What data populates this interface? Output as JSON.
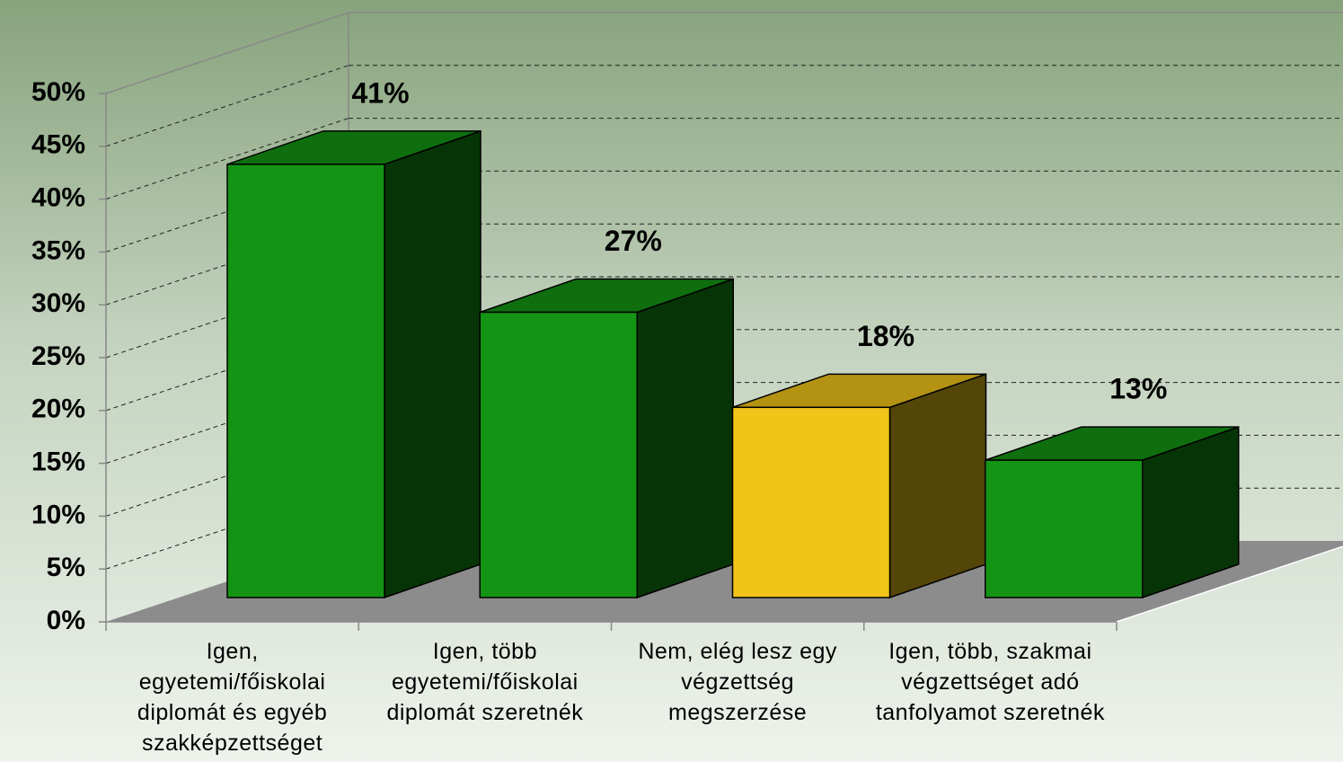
{
  "chart_data": {
    "type": "bar3d",
    "categories": [
      "Igen, egyetemi/főiskolai diplomát és egyéb szakképzettséget",
      "Igen, több egyetemi/főiskolai diplomát szeretnék",
      "Nem, elég lesz egy végzettség megszerzése",
      "Igen, több, szakmai végzettséget adó tanfolyamot szeretnék"
    ],
    "values": [
      41,
      27,
      18,
      13
    ],
    "value_labels": [
      "41%",
      "27%",
      "18%",
      "13%"
    ],
    "colors": [
      "#149414",
      "#149414",
      "#f0c419",
      "#149414"
    ],
    "ylim": [
      0,
      50
    ],
    "yticks": [
      {
        "value": 0,
        "label": "0%"
      },
      {
        "value": 5,
        "label": "5%"
      },
      {
        "value": 10,
        "label": "10%"
      },
      {
        "value": 15,
        "label": "15%"
      },
      {
        "value": 20,
        "label": "20%"
      },
      {
        "value": 25,
        "label": "25%"
      },
      {
        "value": 30,
        "label": "30%"
      },
      {
        "value": 35,
        "label": "35%"
      },
      {
        "value": 40,
        "label": "40%"
      },
      {
        "value": 45,
        "label": "45%"
      },
      {
        "value": 50,
        "label": "50%"
      }
    ],
    "grid": true
  }
}
